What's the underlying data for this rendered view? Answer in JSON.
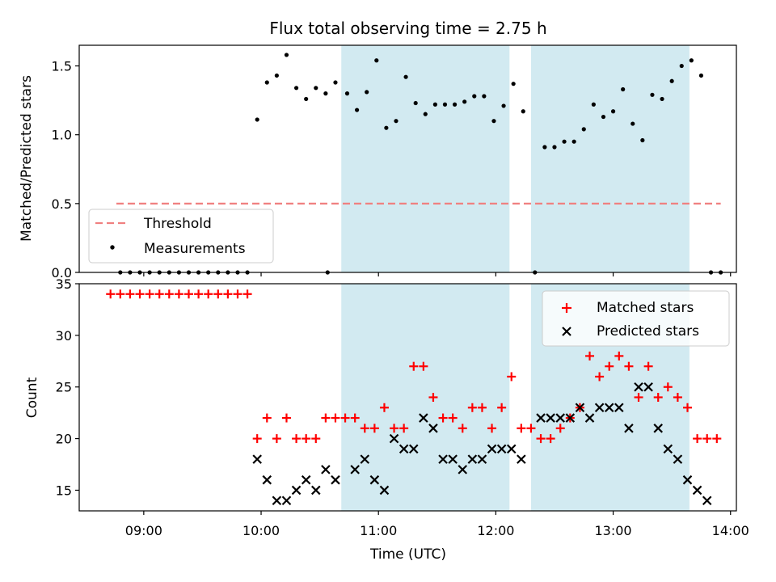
{
  "figure": {
    "title": "Flux total observing time = 2.75 h"
  },
  "chart_data": [
    {
      "type": "scatter",
      "ylabel": "Matched/Predicted stars",
      "xlabel": "",
      "xlim": [
        "08:27",
        "14:03"
      ],
      "ylim": [
        0,
        1.65
      ],
      "y_ticks": [
        "0.0",
        "0.5",
        "1.0",
        "1.5"
      ],
      "threshold": {
        "label": "Threshold",
        "value": 0.5,
        "x_start": "08:46",
        "x_end": "13:55",
        "color": "#f08080"
      },
      "shaded_intervals": [
        [
          "10:41",
          "12:07"
        ],
        [
          "12:18",
          "13:39"
        ]
      ],
      "shade_color": "#add8e6",
      "legend": {
        "placement": "lower-left",
        "threshold_label": "Threshold",
        "measurements_label": "Measurements"
      },
      "series": [
        {
          "name": "Measurements",
          "color": "#000000",
          "points": [
            [
              "08:48",
              0
            ],
            [
              "08:53",
              0
            ],
            [
              "08:58",
              0
            ],
            [
              "09:03",
              0
            ],
            [
              "09:08",
              0
            ],
            [
              "09:13",
              0
            ],
            [
              "09:18",
              0
            ],
            [
              "09:23",
              0
            ],
            [
              "09:28",
              0
            ],
            [
              "09:33",
              0
            ],
            [
              "09:38",
              0
            ],
            [
              "09:43",
              0
            ],
            [
              "09:48",
              0
            ],
            [
              "09:53",
              0
            ],
            [
              "09:58",
              1.11
            ],
            [
              "10:03",
              1.38
            ],
            [
              "10:08",
              1.43
            ],
            [
              "10:13",
              1.58
            ],
            [
              "10:18",
              1.34
            ],
            [
              "10:23",
              1.26
            ],
            [
              "10:28",
              1.34
            ],
            [
              "10:33",
              1.3
            ],
            [
              "10:38",
              1.38
            ],
            [
              "10:34",
              0
            ],
            [
              "10:44",
              1.3
            ],
            [
              "10:49",
              1.18
            ],
            [
              "10:54",
              1.31
            ],
            [
              "10:59",
              1.54
            ],
            [
              "11:04",
              1.05
            ],
            [
              "11:09",
              1.1
            ],
            [
              "11:14",
              1.42
            ],
            [
              "11:19",
              1.23
            ],
            [
              "11:24",
              1.15
            ],
            [
              "11:29",
              1.22
            ],
            [
              "11:34",
              1.22
            ],
            [
              "11:39",
              1.22
            ],
            [
              "11:44",
              1.24
            ],
            [
              "11:49",
              1.28
            ],
            [
              "11:54",
              1.28
            ],
            [
              "11:59",
              1.1
            ],
            [
              "12:04",
              1.21
            ],
            [
              "12:09",
              1.37
            ],
            [
              "12:14",
              1.17
            ],
            [
              "12:20",
              0
            ],
            [
              "12:25",
              0.91
            ],
            [
              "12:30",
              0.91
            ],
            [
              "12:35",
              0.95
            ],
            [
              "12:40",
              0.95
            ],
            [
              "12:45",
              1.04
            ],
            [
              "12:50",
              1.22
            ],
            [
              "12:55",
              1.13
            ],
            [
              "13:00",
              1.17
            ],
            [
              "13:05",
              1.33
            ],
            [
              "13:10",
              1.08
            ],
            [
              "13:15",
              0.96
            ],
            [
              "13:20",
              1.29
            ],
            [
              "13:25",
              1.26
            ],
            [
              "13:30",
              1.39
            ],
            [
              "13:35",
              1.5
            ],
            [
              "13:40",
              1.54
            ],
            [
              "13:45",
              1.43
            ],
            [
              "13:50",
              0
            ],
            [
              "13:55",
              0
            ]
          ]
        }
      ]
    },
    {
      "type": "scatter",
      "xlabel": "Time (UTC)",
      "ylabel": "Count",
      "xlim": [
        "08:27",
        "14:03"
      ],
      "ylim": [
        13,
        35
      ],
      "x_ticks": [
        "09:00",
        "10:00",
        "11:00",
        "12:00",
        "13:00",
        "14:00"
      ],
      "y_ticks": [
        "15",
        "20",
        "25",
        "30",
        "35"
      ],
      "shaded_intervals": [
        [
          "10:41",
          "12:07"
        ],
        [
          "12:18",
          "13:39"
        ]
      ],
      "shade_color": "#add8e6",
      "legend": {
        "placement": "upper-right"
      },
      "series": [
        {
          "name": "Matched stars",
          "marker": "plus",
          "color": "#ff0000",
          "points": [
            [
              "08:43",
              34
            ],
            [
              "08:48",
              34
            ],
            [
              "08:53",
              34
            ],
            [
              "08:58",
              34
            ],
            [
              "09:03",
              34
            ],
            [
              "09:08",
              34
            ],
            [
              "09:13",
              34
            ],
            [
              "09:18",
              34
            ],
            [
              "09:23",
              34
            ],
            [
              "09:28",
              34
            ],
            [
              "09:33",
              34
            ],
            [
              "09:38",
              34
            ],
            [
              "09:43",
              34
            ],
            [
              "09:48",
              34
            ],
            [
              "09:53",
              34
            ],
            [
              "09:58",
              20
            ],
            [
              "10:03",
              22
            ],
            [
              "10:08",
              20
            ],
            [
              "10:13",
              22
            ],
            [
              "10:18",
              20
            ],
            [
              "10:23",
              20
            ],
            [
              "10:28",
              20
            ],
            [
              "10:33",
              22
            ],
            [
              "10:38",
              22
            ],
            [
              "10:43",
              22
            ],
            [
              "10:48",
              22
            ],
            [
              "10:53",
              21
            ],
            [
              "10:58",
              21
            ],
            [
              "11:03",
              23
            ],
            [
              "11:08",
              21
            ],
            [
              "11:13",
              21
            ],
            [
              "11:18",
              27
            ],
            [
              "11:23",
              27
            ],
            [
              "11:28",
              24
            ],
            [
              "11:33",
              22
            ],
            [
              "11:38",
              22
            ],
            [
              "11:43",
              21
            ],
            [
              "11:48",
              23
            ],
            [
              "11:53",
              23
            ],
            [
              "11:58",
              21
            ],
            [
              "12:03",
              23
            ],
            [
              "12:08",
              26
            ],
            [
              "12:13",
              21
            ],
            [
              "12:18",
              21
            ],
            [
              "12:23",
              20
            ],
            [
              "12:28",
              20
            ],
            [
              "12:33",
              21
            ],
            [
              "12:38",
              22
            ],
            [
              "12:43",
              23
            ],
            [
              "12:48",
              28
            ],
            [
              "12:53",
              26
            ],
            [
              "12:58",
              27
            ],
            [
              "13:03",
              28
            ],
            [
              "13:08",
              27
            ],
            [
              "13:13",
              24
            ],
            [
              "13:18",
              27
            ],
            [
              "13:23",
              24
            ],
            [
              "13:28",
              25
            ],
            [
              "13:33",
              24
            ],
            [
              "13:38",
              23
            ],
            [
              "13:43",
              20
            ],
            [
              "13:48",
              20
            ],
            [
              "13:53",
              20
            ]
          ]
        },
        {
          "name": "Predicted stars",
          "marker": "x",
          "color": "#000000",
          "points": [
            [
              "09:58",
              18
            ],
            [
              "10:03",
              16
            ],
            [
              "10:08",
              14
            ],
            [
              "10:13",
              14
            ],
            [
              "10:18",
              15
            ],
            [
              "10:23",
              16
            ],
            [
              "10:28",
              15
            ],
            [
              "10:33",
              17
            ],
            [
              "10:38",
              16
            ],
            [
              "10:48",
              17
            ],
            [
              "10:53",
              18
            ],
            [
              "10:58",
              16
            ],
            [
              "11:03",
              15
            ],
            [
              "11:08",
              20
            ],
            [
              "11:13",
              19
            ],
            [
              "11:18",
              19
            ],
            [
              "11:23",
              22
            ],
            [
              "11:28",
              21
            ],
            [
              "11:33",
              18
            ],
            [
              "11:38",
              18
            ],
            [
              "11:43",
              17
            ],
            [
              "11:48",
              18
            ],
            [
              "11:53",
              18
            ],
            [
              "11:58",
              19
            ],
            [
              "12:03",
              19
            ],
            [
              "12:08",
              19
            ],
            [
              "12:13",
              18
            ],
            [
              "12:23",
              22
            ],
            [
              "12:28",
              22
            ],
            [
              "12:33",
              22
            ],
            [
              "12:38",
              22
            ],
            [
              "12:43",
              23
            ],
            [
              "12:48",
              22
            ],
            [
              "12:53",
              23
            ],
            [
              "12:58",
              23
            ],
            [
              "13:03",
              23
            ],
            [
              "13:08",
              21
            ],
            [
              "13:13",
              25
            ],
            [
              "13:18",
              25
            ],
            [
              "13:23",
              21
            ],
            [
              "13:28",
              19
            ],
            [
              "13:33",
              18
            ],
            [
              "13:38",
              16
            ],
            [
              "13:43",
              15
            ],
            [
              "13:48",
              14
            ]
          ]
        }
      ]
    }
  ]
}
